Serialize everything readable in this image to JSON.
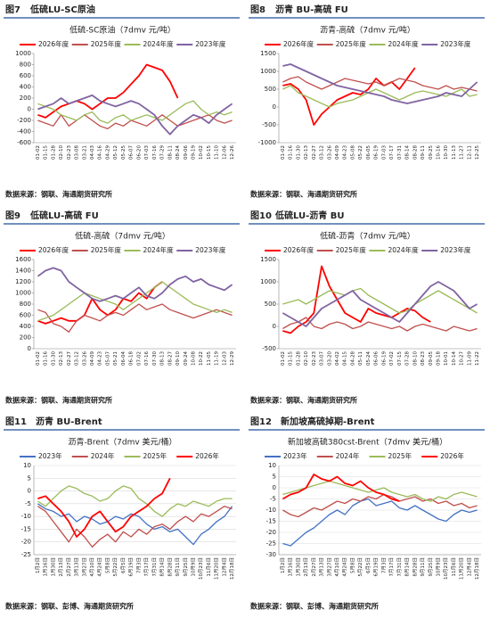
{
  "chart_data": [
    {
      "type": "line",
      "figure_label": "图7",
      "figure_title": "低硫LU-SC原油",
      "title": "低硫-SC原油（7dmv 元/吨）",
      "source": "数据来源：钢联、海通期货研究所",
      "categories": [
        "01-02",
        "01-15",
        "01-28",
        "02-10",
        "02-23",
        "03-08",
        "03-21",
        "04-03",
        "04-16",
        "04-29",
        "05-12",
        "05-25",
        "06-07",
        "06-20",
        "07-03",
        "07-16",
        "07-29",
        "08-11",
        "08-24",
        "09-06",
        "09-19",
        "10-02",
        "10-15",
        "11-10",
        "12-06",
        "12-26"
      ],
      "series": [
        {
          "name": "2026年度",
          "color": "#ff0000",
          "values": [
            -100,
            -150,
            -50,
            50,
            100,
            150,
            100,
            0,
            100,
            200,
            200,
            300,
            450,
            600,
            800,
            750,
            700,
            500,
            200,
            null,
            null,
            null,
            null,
            null,
            null,
            null
          ]
        },
        {
          "name": "2025年度",
          "color": "#c0504d",
          "values": [
            -200,
            -250,
            -300,
            -100,
            -300,
            -200,
            -100,
            -200,
            -300,
            -350,
            -250,
            -300,
            -200,
            -250,
            -300,
            -200,
            -100,
            -200,
            -300,
            -250,
            -200,
            -150,
            -100,
            -200,
            -250,
            -200
          ]
        },
        {
          "name": "2024年度",
          "color": "#9bbb59",
          "values": [
            100,
            50,
            0,
            -100,
            -150,
            -200,
            -100,
            -50,
            -200,
            -250,
            -150,
            -100,
            -200,
            -150,
            -100,
            -150,
            -200,
            -100,
            0,
            100,
            150,
            0,
            -100,
            -50,
            -100,
            -50
          ]
        },
        {
          "name": "2023年度",
          "color": "#8064a2",
          "values": [
            0,
            50,
            100,
            200,
            100,
            150,
            200,
            250,
            150,
            100,
            50,
            100,
            150,
            100,
            0,
            -100,
            -300,
            -450,
            -300,
            -200,
            -100,
            -150,
            -250,
            -100,
            0,
            100
          ]
        }
      ],
      "ylim": [
        -600,
        1000
      ],
      "yticks": [
        -600,
        -400,
        -200,
        0,
        200,
        400,
        600,
        800,
        1000
      ],
      "grid": false,
      "legend": "top"
    },
    {
      "type": "line",
      "figure_label": "图8",
      "figure_title": "沥青 BU-高硫 FU",
      "title": "沥青-高硫（7dmv 元/吨）",
      "source": "数据来源：钢联、海通期货研究所",
      "categories": [
        "01-02",
        "01-16",
        "01-30",
        "02-13",
        "02-27",
        "03-12",
        "03-26",
        "04-09",
        "04-23",
        "05-08",
        "05-22",
        "06-05",
        "06-19",
        "07-03",
        "07-17",
        "07-31",
        "08-14",
        "08-28",
        "09-11",
        "09-25",
        "10-16",
        "10-30",
        "11-13",
        "11-27",
        "12-11",
        "12-25"
      ],
      "series": [
        {
          "name": "2026年度",
          "color": "#ff0000",
          "values": [
            600,
            650,
            500,
            200,
            -500,
            -200,
            0,
            200,
            300,
            400,
            350,
            500,
            800,
            600,
            700,
            500,
            800,
            1100,
            null,
            null,
            null,
            null,
            null,
            null,
            null,
            null
          ]
        },
        {
          "name": "2025年度",
          "color": "#c0504d",
          "values": [
            700,
            800,
            850,
            700,
            600,
            500,
            600,
            700,
            800,
            750,
            700,
            650,
            700,
            600,
            700,
            800,
            750,
            700,
            600,
            550,
            500,
            600,
            500,
            550,
            500,
            450
          ]
        },
        {
          "name": "2024年度",
          "color": "#9bbb59",
          "values": [
            500,
            600,
            400,
            300,
            200,
            100,
            0,
            100,
            150,
            200,
            300,
            400,
            500,
            400,
            300,
            200,
            300,
            400,
            450,
            400,
            350,
            300,
            400,
            500,
            300,
            350
          ]
        },
        {
          "name": "2023年度",
          "color": "#8064a2",
          "values": [
            1150,
            1200,
            1100,
            1000,
            900,
            800,
            700,
            600,
            550,
            500,
            450,
            400,
            350,
            300,
            200,
            150,
            100,
            150,
            200,
            250,
            300,
            400,
            350,
            300,
            500,
            700
          ]
        }
      ],
      "ylim": [
        -1000,
        1500
      ],
      "yticks": [
        -1000,
        -500,
        0,
        500,
        1000,
        1500
      ],
      "grid": false,
      "legend": "top"
    },
    {
      "type": "line",
      "figure_label": "图9",
      "figure_title": "低硫LU-高硫 FU",
      "title": "低硫-高硫（7dmv 元/吨）",
      "source": "数据来源：钢联、海通期货研究所",
      "categories": [
        "01-02",
        "01-16",
        "01-30",
        "02-13",
        "02-27",
        "03-12",
        "03-26",
        "04-09",
        "04-23",
        "05-07",
        "05-21",
        "06-04",
        "06-18",
        "07-02",
        "07-16",
        "07-30",
        "08-13",
        "08-27",
        "09-10",
        "09-24",
        "10-08",
        "10-22",
        "11-05",
        "11-19",
        "12-03",
        "12-29"
      ],
      "series": [
        {
          "name": "2026年度",
          "color": "#ff0000",
          "values": [
            500,
            450,
            500,
            550,
            500,
            500,
            600,
            900,
            700,
            600,
            700,
            900,
            850,
            1000,
            900,
            1100,
            1200,
            null,
            null,
            null,
            null,
            null,
            null,
            null,
            null,
            null
          ]
        },
        {
          "name": "2025年度",
          "color": "#c0504d",
          "values": [
            700,
            650,
            450,
            400,
            300,
            500,
            600,
            550,
            500,
            600,
            650,
            600,
            700,
            800,
            700,
            750,
            800,
            700,
            650,
            600,
            550,
            600,
            650,
            700,
            650,
            600
          ]
        },
        {
          "name": "2024年度",
          "color": "#9bbb59",
          "values": [
            500,
            550,
            600,
            700,
            800,
            900,
            1000,
            950,
            900,
            850,
            800,
            700,
            800,
            900,
            1000,
            1100,
            1200,
            1100,
            1000,
            900,
            800,
            750,
            700,
            650,
            700,
            650
          ]
        },
        {
          "name": "2023年度",
          "color": "#8064a2",
          "values": [
            1300,
            1400,
            1450,
            1400,
            1200,
            1100,
            1000,
            900,
            850,
            900,
            950,
            900,
            1000,
            1100,
            950,
            900,
            1000,
            1150,
            1250,
            1300,
            1200,
            1250,
            1150,
            1100,
            1050,
            1150
          ]
        }
      ],
      "ylim": [
        0,
        1600
      ],
      "yticks": [
        0,
        200,
        400,
        600,
        800,
        1000,
        1200,
        1400,
        1600
      ],
      "grid": false,
      "legend": "top"
    },
    {
      "type": "line",
      "figure_label": "图10",
      "figure_title": "低硫LU-沥青 BU",
      "title": "低硫-沥青（7dmv 元/吨）",
      "source": "数据来源：钢联、海通期货研究所",
      "categories": [
        "01-02",
        "01-15",
        "01-28",
        "02-10",
        "02-23",
        "03-07",
        "03-20",
        "04-02",
        "04-15",
        "04-28",
        "05-11",
        "05-24",
        "06-06",
        "06-19",
        "07-02",
        "07-15",
        "07-28",
        "08-10",
        "08-23",
        "09-05",
        "09-18",
        "10-01",
        "10-14",
        "10-27",
        "11-09",
        "11-22"
      ],
      "series": [
        {
          "name": "2026年度",
          "color": "#ff0000",
          "values": [
            -100,
            -150,
            0,
            100,
            300,
            1350,
            900,
            600,
            300,
            200,
            100,
            400,
            300,
            250,
            200,
            300,
            400,
            350,
            200,
            100,
            null,
            null,
            null,
            null,
            null,
            null
          ]
        },
        {
          "name": "2025年度",
          "color": "#c0504d",
          "values": [
            -50,
            50,
            100,
            200,
            0,
            -50,
            50,
            100,
            50,
            -50,
            0,
            100,
            50,
            0,
            -50,
            0,
            -100,
            0,
            50,
            0,
            -50,
            -100,
            0,
            -50,
            -100,
            -50
          ]
        },
        {
          "name": "2024年度",
          "color": "#9bbb59",
          "values": [
            500,
            550,
            600,
            500,
            600,
            700,
            800,
            750,
            700,
            800,
            850,
            700,
            600,
            500,
            400,
            300,
            350,
            500,
            600,
            700,
            800,
            700,
            600,
            500,
            400,
            300
          ]
        },
        {
          "name": "2023年度",
          "color": "#8064a2",
          "values": [
            300,
            200,
            100,
            0,
            200,
            400,
            500,
            600,
            700,
            800,
            600,
            500,
            400,
            300,
            200,
            100,
            300,
            500,
            700,
            900,
            1000,
            900,
            800,
            600,
            400,
            500
          ]
        }
      ],
      "ylim": [
        -500,
        1500
      ],
      "yticks": [
        -500,
        0,
        500,
        1000,
        1500
      ],
      "grid": false,
      "legend": "top"
    },
    {
      "type": "line",
      "figure_label": "图11",
      "figure_title": "沥青 BU-Brent",
      "title": "沥青-Brent（7dmv 美元/桶）",
      "source": "数据来源：钢联、彭博、海通期货研究所",
      "categories": [
        "1月2日",
        "1月16日",
        "1月30日",
        "2月13日",
        "2月27日",
        "3月13日",
        "3月27日",
        "4月10日",
        "4月24日",
        "5月8日",
        "5月22日",
        "6月5日",
        "6月19日",
        "7月3日",
        "7月17日",
        "7月31日",
        "8月14日",
        "8月28日",
        "9月11日",
        "9月25日",
        "10月9日",
        "10月23日",
        "11月6日",
        "11月20日",
        "12月4日",
        "12月18日"
      ],
      "series": [
        {
          "name": "2023年",
          "color": "#4472c4",
          "values": [
            -5,
            -7,
            -8,
            -10,
            -9,
            -12,
            -10,
            -11,
            -13,
            -12,
            -10,
            -11,
            -9,
            -10,
            -13,
            -15,
            -14,
            -16,
            -15,
            -18,
            -21,
            -17,
            -15,
            -12,
            -10,
            -6
          ]
        },
        {
          "name": "2024年",
          "color": "#c0504d",
          "values": [
            -6,
            -8,
            -12,
            -16,
            -20,
            -15,
            -18,
            -22,
            -19,
            -17,
            -20,
            -16,
            -18,
            -15,
            -17,
            -14,
            -13,
            -15,
            -12,
            -10,
            -12,
            -9,
            -10,
            -8,
            -6,
            -7
          ]
        },
        {
          "name": "2025年",
          "color": "#9bbb59",
          "values": [
            -4,
            -6,
            -3,
            0,
            2,
            1,
            -1,
            -2,
            -4,
            -3,
            0,
            2,
            1,
            -3,
            -5,
            -8,
            -10,
            -7,
            -5,
            -6,
            -4,
            -5,
            -6,
            -4,
            -3,
            -3
          ]
        },
        {
          "name": "2026年",
          "color": "#ff0000",
          "values": [
            -3,
            -2,
            -5,
            -8,
            -12,
            -18,
            -15,
            -10,
            -8,
            -12,
            -16,
            -14,
            -10,
            -8,
            -6,
            -3,
            -1,
            5,
            null,
            null,
            null,
            null,
            null,
            null,
            null,
            null
          ]
        }
      ],
      "ylim": [
        -25,
        10
      ],
      "yticks": [
        -25,
        -20,
        -15,
        -10,
        -5,
        0,
        5,
        10
      ],
      "grid": true,
      "legend": "top"
    },
    {
      "type": "line",
      "figure_label": "图12",
      "figure_title": "新加坡高硫掉期-Brent",
      "title": "新加坡高硫380cst-Brent（7dmv 美元/桶）",
      "source": "数据来源：钢联、彭博、海通期货研究所",
      "categories": [
        "1月2日",
        "1月16日",
        "1月30日",
        "2月13日",
        "2月27日",
        "3月13日",
        "3月27日",
        "4月10日",
        "4月24日",
        "5月8日",
        "5月22日",
        "6月5日",
        "6月19日",
        "7月3日",
        "7月17日",
        "7月31日",
        "8月14日",
        "8月28日",
        "9月11日",
        "9月25日",
        "10月9日",
        "10月23日",
        "11月6日",
        "11月20日",
        "12月4日",
        "12月18日"
      ],
      "series": [
        {
          "name": "2023年",
          "color": "#4472c4",
          "values": [
            -25,
            -26,
            -23,
            -20,
            -18,
            -15,
            -12,
            -10,
            -12,
            -8,
            -6,
            -5,
            -8,
            -7,
            -6,
            -9,
            -10,
            -8,
            -10,
            -12,
            -14,
            -15,
            -12,
            -10,
            -11,
            -10
          ]
        },
        {
          "name": "2024年",
          "color": "#c0504d",
          "values": [
            -10,
            -12,
            -13,
            -11,
            -9,
            -10,
            -8,
            -6,
            -7,
            -5,
            -6,
            -4,
            -5,
            -3,
            -4,
            -6,
            -5,
            -4,
            -6,
            -5,
            -7,
            -6,
            -8,
            -7,
            -9,
            -8
          ]
        },
        {
          "name": "2025年",
          "color": "#9bbb59",
          "values": [
            -3,
            -2,
            -1,
            0,
            1,
            2,
            3,
            2,
            1,
            0,
            -1,
            -2,
            -1,
            0,
            -2,
            -3,
            -4,
            -3,
            -5,
            -6,
            -4,
            -5,
            -3,
            -2,
            -3,
            -4
          ]
        },
        {
          "name": "2026年",
          "color": "#ff0000",
          "values": [
            -5,
            -3,
            -2,
            0,
            6,
            4,
            3,
            5,
            2,
            1,
            3,
            0,
            -2,
            -3,
            -5,
            -6,
            null,
            null,
            null,
            null,
            null,
            null,
            null,
            null,
            null,
            null
          ]
        }
      ],
      "ylim": [
        -30,
        10
      ],
      "yticks": [
        -30,
        -25,
        -20,
        -15,
        -10,
        -5,
        0,
        5,
        10
      ],
      "grid": true,
      "legend": "top"
    }
  ]
}
